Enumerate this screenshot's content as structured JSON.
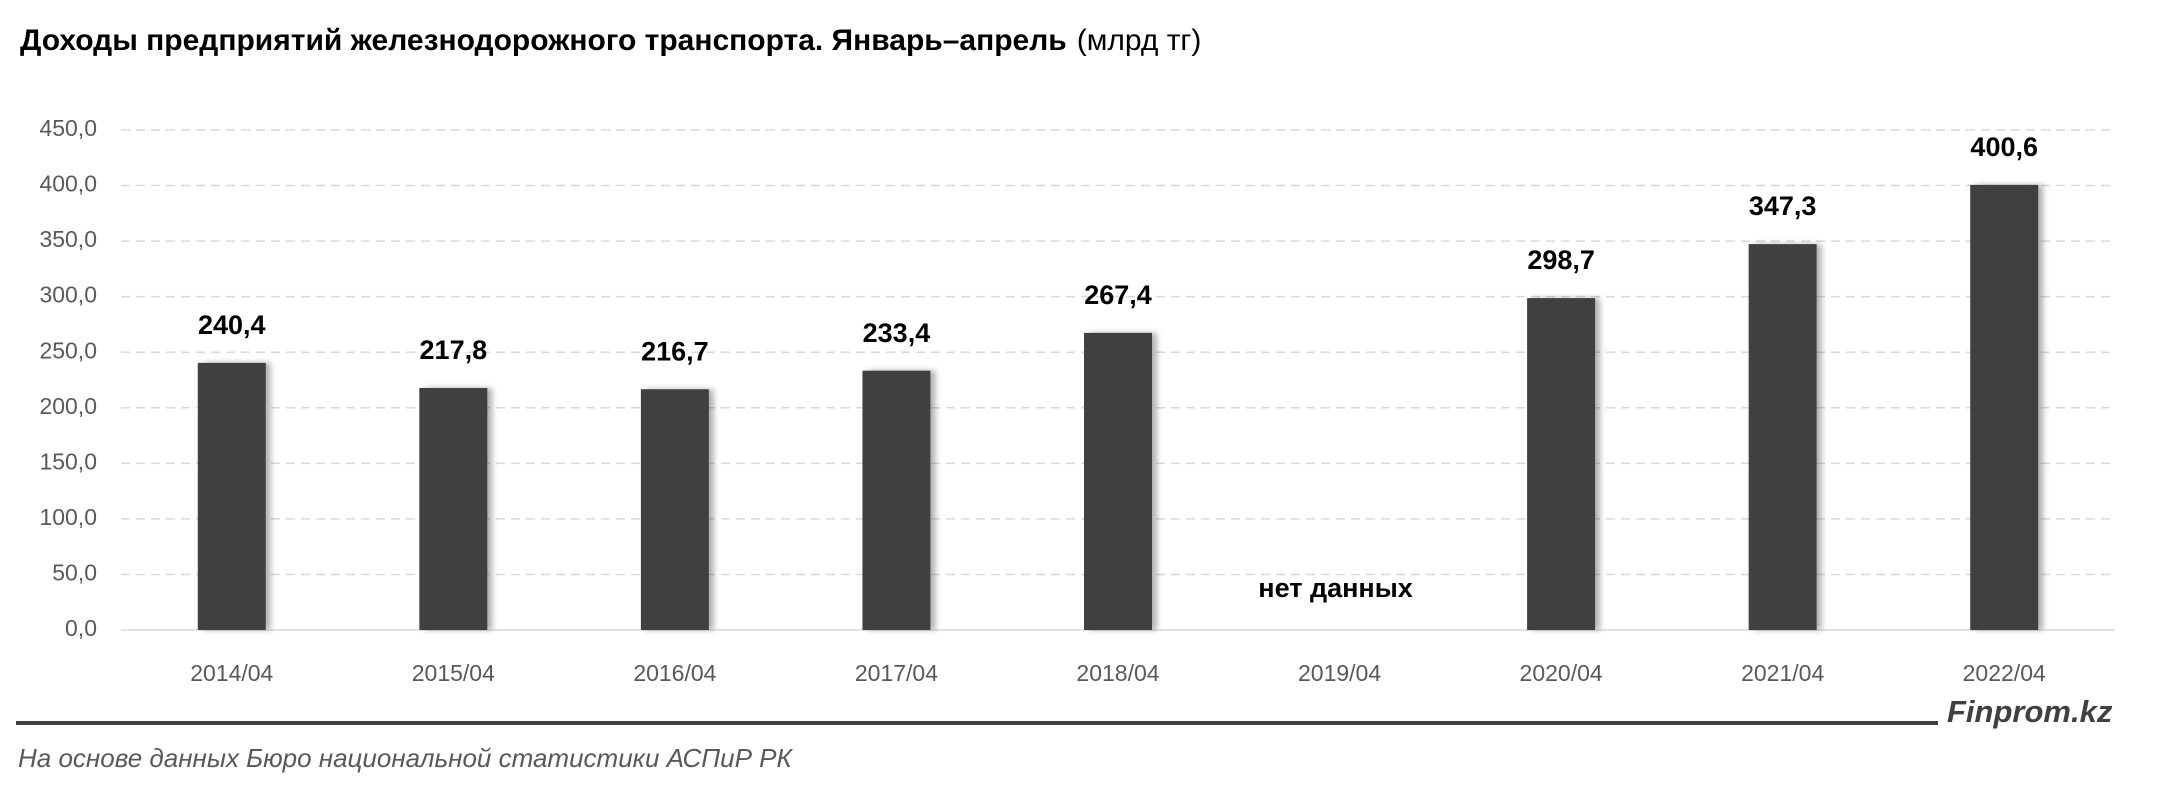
{
  "chart_data": {
    "type": "bar",
    "title": "Доходы предприятий железнодорожного транспорта. Январь–апрель",
    "subtitle": "(млрд тг)",
    "categories": [
      "2014/04",
      "2015/04",
      "2016/04",
      "2017/04",
      "2018/04",
      "2019/04",
      "2020/04",
      "2021/04",
      "2022/04"
    ],
    "values": [
      240.4,
      217.8,
      216.7,
      233.4,
      267.4,
      null,
      298.7,
      347.3,
      400.6
    ],
    "value_labels": [
      "240,4",
      "217,8",
      "216,7",
      "233,4",
      "267,4",
      null,
      "298,7",
      "347,3",
      "400,6"
    ],
    "color": "#404040",
    "ylim": [
      0,
      450
    ],
    "yticks": [
      {
        "value": 0,
        "label": "0,0"
      },
      {
        "value": 50,
        "label": "50,0"
      },
      {
        "value": 100,
        "label": "100,0"
      },
      {
        "value": 150,
        "label": "150,0"
      },
      {
        "value": 200,
        "label": "200,0"
      },
      {
        "value": 250,
        "label": "250,0"
      },
      {
        "value": 300,
        "label": "300,0"
      },
      {
        "value": 350,
        "label": "350,0"
      },
      {
        "value": 400,
        "label": "400,0"
      },
      {
        "value": 450,
        "label": "450,0"
      }
    ],
    "grid": true,
    "annotation": "нет данных",
    "brand": "Finprom.kz",
    "source": "На основе данных Бюро национальной статистики АСПиР РК"
  }
}
